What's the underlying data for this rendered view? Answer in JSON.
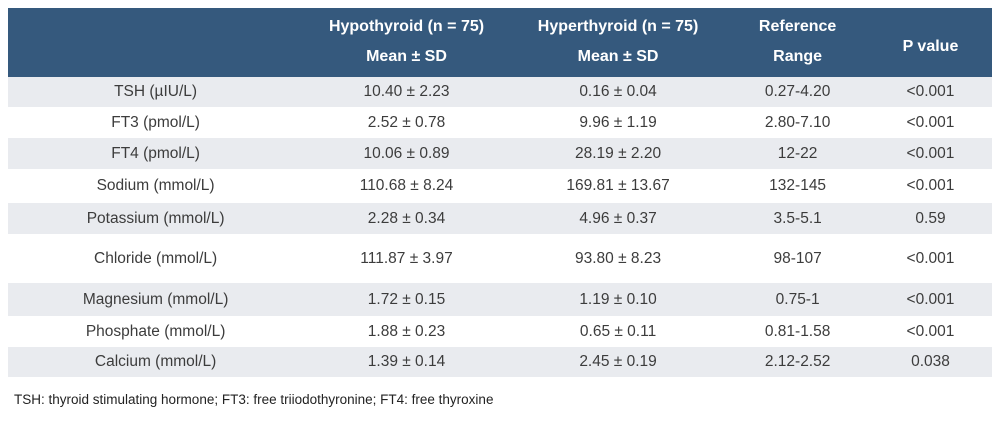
{
  "table": {
    "columns": {
      "parameter": {
        "title": ""
      },
      "hypothyroid": {
        "title": "Hypothyroid (n = 75)",
        "subtitle": "Mean ± SD"
      },
      "hyperthyroid": {
        "title": "Hyperthyroid (n = 75)",
        "subtitle": "Mean ± SD"
      },
      "reference": {
        "title": "Reference",
        "subtitle": "Range"
      },
      "p_value": {
        "title": "P value"
      }
    },
    "rows": [
      {
        "parameter": "TSH (µIU/L)",
        "hypothyroid": "10.40 ± 2.23",
        "hyperthyroid": "0.16 ± 0.04",
        "reference_range": "0.27-4.20",
        "p_value": "<0.001"
      },
      {
        "parameter": "FT3 (pmol/L)",
        "hypothyroid": "2.52 ± 0.78",
        "hyperthyroid": "9.96 ± 1.19",
        "reference_range": "2.80-7.10",
        "p_value": "<0.001"
      },
      {
        "parameter": "FT4 (pmol/L)",
        "hypothyroid": "10.06 ± 0.89",
        "hyperthyroid": "28.19 ± 2.20",
        "reference_range": "12-22",
        "p_value": "<0.001"
      },
      {
        "parameter": "Sodium (mmol/L)",
        "hypothyroid": "110.68 ± 8.24",
        "hyperthyroid": "169.81 ± 13.67",
        "reference_range": "132-145",
        "p_value": "<0.001"
      },
      {
        "parameter": "Potassium (mmol/L)",
        "hypothyroid": "2.28 ± 0.34",
        "hyperthyroid": "4.96 ± 0.37",
        "reference_range": "3.5-5.1",
        "p_value": "0.59"
      },
      {
        "parameter": "Chloride (mmol/L)",
        "hypothyroid": "111.87 ± 3.97",
        "hyperthyroid": "93.80 ± 8.23",
        "reference_range": "98-107",
        "p_value": "<0.001"
      },
      {
        "parameter": "Magnesium (mmol/L)",
        "hypothyroid": "1.72 ± 0.15",
        "hyperthyroid": "1.19 ± 0.10",
        "reference_range": "0.75-1",
        "p_value": "<0.001"
      },
      {
        "parameter": "Phosphate (mmol/L)",
        "hypothyroid": "1.88 ± 0.23",
        "hyperthyroid": "0.65 ± 0.11",
        "reference_range": "0.81-1.58",
        "p_value": "<0.001"
      },
      {
        "parameter": "Calcium (mmol/L)",
        "hypothyroid": "1.39 ± 0.14",
        "hyperthyroid": "2.45 ± 0.19",
        "reference_range": "2.12-2.52",
        "p_value": "0.038"
      }
    ],
    "footnote": "TSH: thyroid stimulating hormone; FT3: free triiodothyronine; FT4: free thyroxine"
  },
  "colors": {
    "header_bg": "#35597D",
    "stripe_bg": "#E9EBEF",
    "header_text": "#FFFFFF",
    "body_text": "#3C3C3C",
    "footnote_text": "#222222"
  }
}
